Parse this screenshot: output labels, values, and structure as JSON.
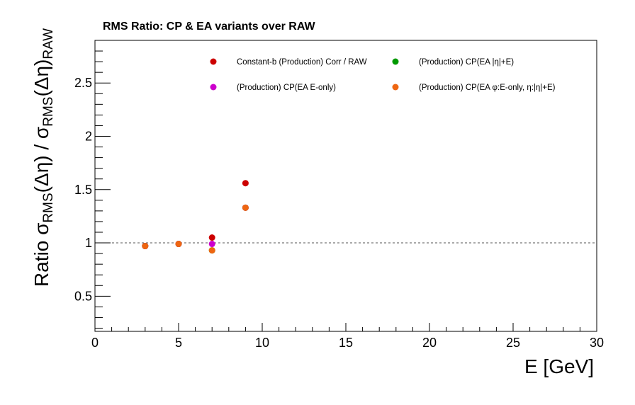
{
  "chart_data": {
    "type": "scatter",
    "title": "RMS Ratio: CP & EA variants over RAW",
    "xlabel": "E  [GeV]",
    "ylabel": {
      "prefix": "Ratio  σ",
      "sub1": "RMS",
      "mid": "(Δη) / σ",
      "sub2": "RMS",
      "mid2": "(Δη)",
      "sub3": "RAW"
    },
    "xlim": [
      0,
      30
    ],
    "ylim": [
      0.17,
      2.9
    ],
    "x_ticks": [
      0,
      5,
      10,
      15,
      20,
      25,
      30
    ],
    "x_tick_labels": [
      "0",
      "5",
      "10",
      "15",
      "20",
      "25",
      "30"
    ],
    "y_ticks": [
      0.5,
      1,
      1.5,
      2,
      2.5
    ],
    "y_tick_labels": [
      "0.5",
      "1",
      "1.5",
      "2",
      "2.5"
    ],
    "reference_line": 1,
    "legend_position": "top",
    "series": [
      {
        "name": "Constant-b (Production) Corr / RAW",
        "color": "#cc0000",
        "x": [
          3,
          5,
          7,
          9
        ],
        "y": [
          0.97,
          0.99,
          1.05,
          1.56
        ]
      },
      {
        "name": "(Production) CP(EA |η|+E)",
        "color": "#009900",
        "x": [
          3,
          5,
          7,
          9
        ],
        "y": [
          0.97,
          0.99,
          0.93,
          1.33
        ]
      },
      {
        "name": "(Production) CP(EA E-only)",
        "color": "#cc00cc",
        "x": [
          3,
          5,
          7,
          9
        ],
        "y": [
          0.97,
          0.99,
          0.99,
          1.33
        ]
      },
      {
        "name": "(Production) CP(EA φ:E-only, η:|η|+E)",
        "color": "#ee6611",
        "x": [
          3,
          5,
          7,
          9
        ],
        "y": [
          0.97,
          0.99,
          0.93,
          1.33
        ]
      }
    ]
  }
}
